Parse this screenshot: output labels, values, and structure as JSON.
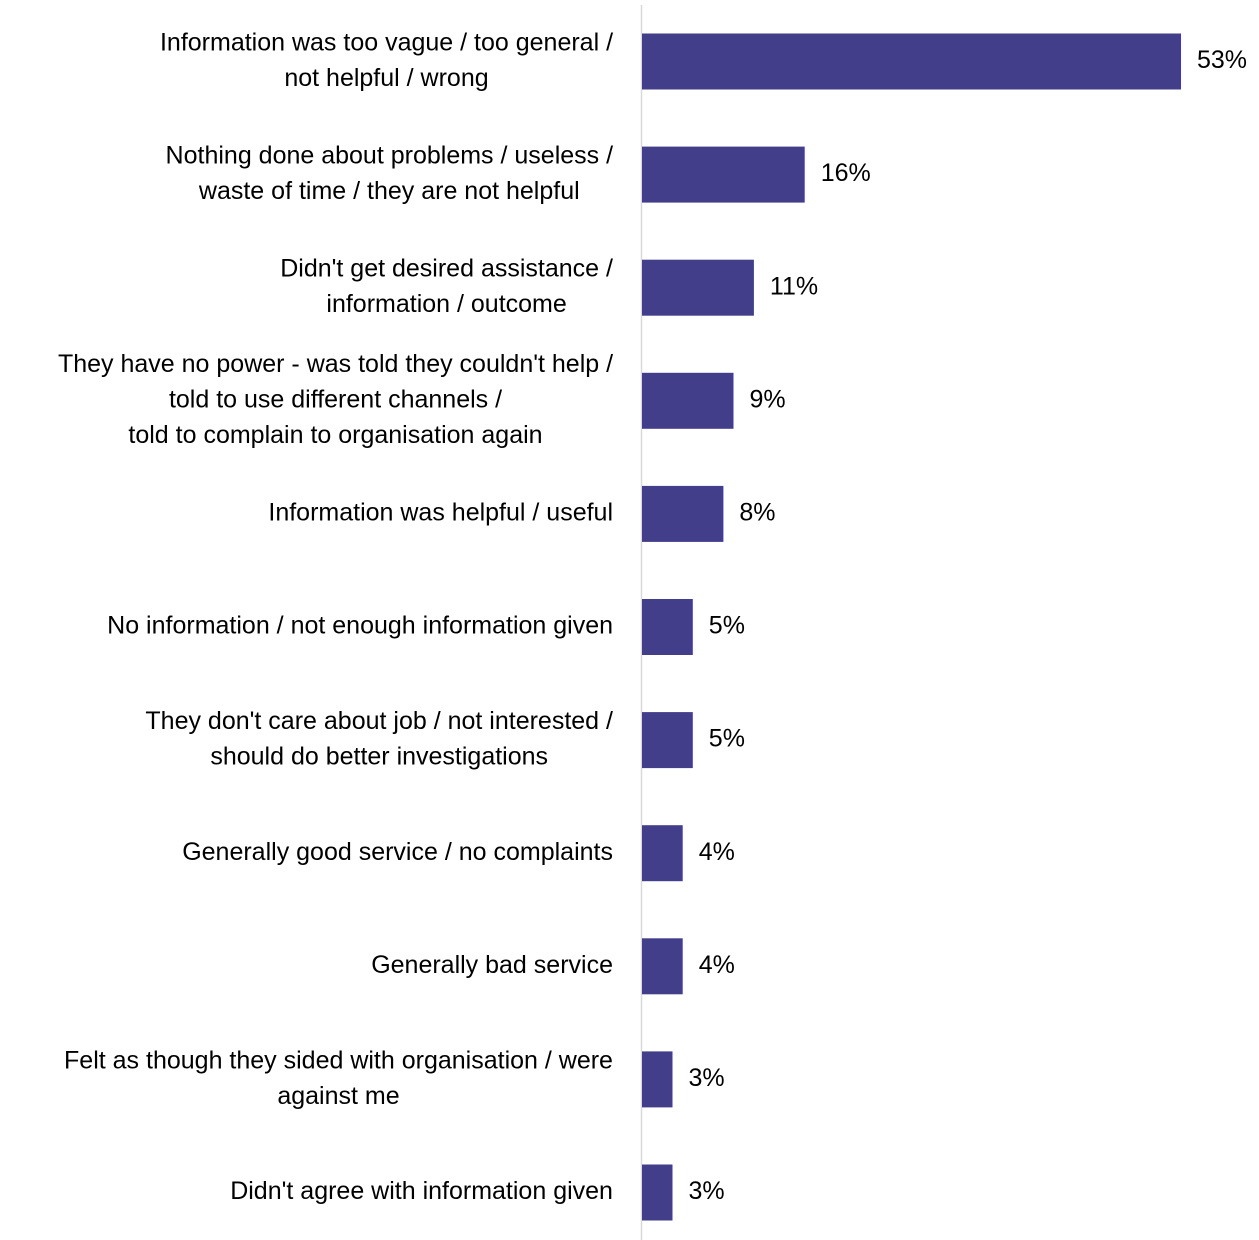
{
  "chart_data": {
    "type": "bar",
    "orientation": "horizontal",
    "categories": [
      [
        "Information was too vague / too general /",
        "not helpful / wrong"
      ],
      [
        "Nothing done about problems / useless /",
        "waste of time / they are not helpful"
      ],
      [
        "Didn't get desired assistance /",
        "information / outcome"
      ],
      [
        "They have no power - was told they couldn't help /",
        "told to use different channels /",
        "told to complain to organisation again"
      ],
      [
        "Information was helpful / useful"
      ],
      [
        "No information / not enough information given"
      ],
      [
        "They don't care about job / not interested /",
        "should do better investigations"
      ],
      [
        "Generally good service / no complaints"
      ],
      [
        "Generally bad service"
      ],
      [
        "Felt as though they sided with organisation / were",
        "against me"
      ],
      [
        "Didn't agree with information given"
      ]
    ],
    "values": [
      53,
      16,
      11,
      9,
      8,
      5,
      5,
      4,
      4,
      3,
      3
    ],
    "value_labels": [
      "53%",
      "16%",
      "11%",
      "9%",
      "8%",
      "5%",
      "5%",
      "4%",
      "4%",
      "3%",
      "3%"
    ],
    "xlim": [
      0,
      53
    ],
    "grid": false,
    "legend": "none",
    "colors": {
      "bar": "#433e8a",
      "axis": "#d9d9d9",
      "text": "#000000"
    }
  }
}
